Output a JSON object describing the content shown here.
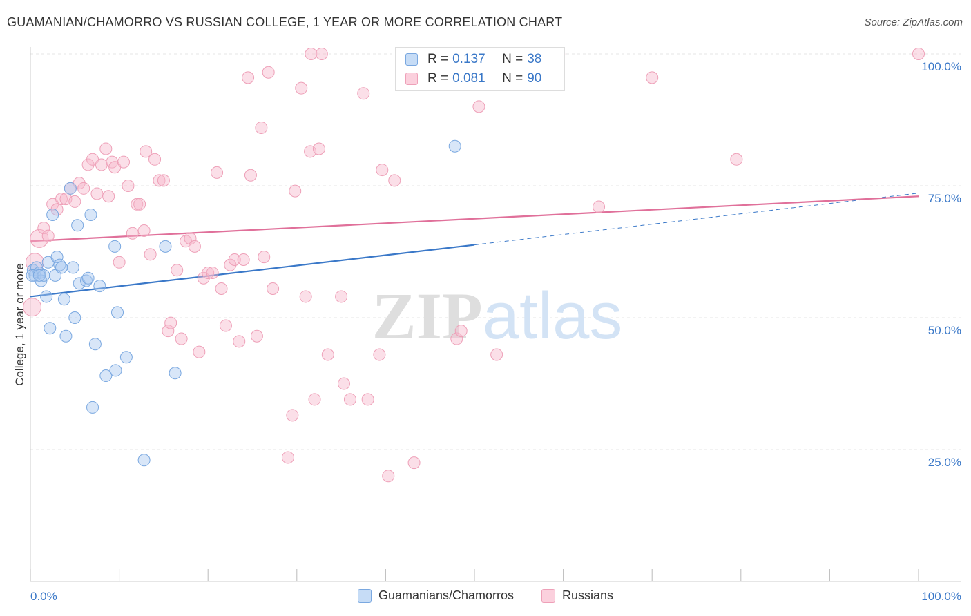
{
  "title": "GUAMANIAN/CHAMORRO VS RUSSIAN COLLEGE, 1 YEAR OR MORE CORRELATION CHART",
  "source": "Source: ZipAtlas.com",
  "watermark": "ZIPatlas",
  "legend": {
    "rows": [
      {
        "r_label": "R =",
        "r_value": "0.137",
        "n_label": "N =",
        "n_value": "38",
        "color": "#a8c8f0"
      },
      {
        "r_label": "R =",
        "r_value": "0.081",
        "n_label": "N =",
        "n_value": "90",
        "color": "#f7b8cc"
      }
    ]
  },
  "bottom_legend": [
    {
      "label": "Guamanians/Chamorros",
      "color": "#a8c8f0"
    },
    {
      "label": "Russians",
      "color": "#f7b8cc"
    }
  ],
  "colors": {
    "blue": "#3a78c8",
    "pink": "#e0709a",
    "blue_fill": "#a8c8f0",
    "pink_fill": "#f7b8cc",
    "axis_text": "#3a78c8"
  },
  "chart_data": {
    "type": "scatter",
    "title": "GUAMANIAN/CHAMORRO VS RUSSIAN COLLEGE, 1 YEAR OR MORE CORRELATION CHART",
    "xlabel": "",
    "ylabel": "College, 1 year or more",
    "x_ticks": [
      "0.0%",
      "100.0%"
    ],
    "y_ticks": [
      "25.0%",
      "50.0%",
      "75.0%",
      "100.0%"
    ],
    "xlim": [
      0,
      100
    ],
    "ylim": [
      0,
      100
    ],
    "grid": true,
    "series": [
      {
        "name": "Guamanians/Chamorros",
        "color": "#3a78c8",
        "trend": {
          "x0": 0,
          "y0": 54.0,
          "x1": 50,
          "y1": 63.8,
          "dash_to": 100
        },
        "points": [
          [
            0.3,
            59
          ],
          [
            0.5,
            58
          ],
          [
            0.7,
            59.5
          ],
          [
            1.0,
            58.5
          ],
          [
            1.2,
            57
          ],
          [
            1.5,
            58
          ],
          [
            1.8,
            54
          ],
          [
            2.0,
            60.5
          ],
          [
            2.2,
            48
          ],
          [
            2.5,
            69.5
          ],
          [
            2.8,
            58
          ],
          [
            3.0,
            61.5
          ],
          [
            3.3,
            60
          ],
          [
            3.5,
            59.5
          ],
          [
            3.8,
            53.5
          ],
          [
            4.0,
            46.5
          ],
          [
            4.5,
            74.5
          ],
          [
            4.8,
            59.5
          ],
          [
            5.0,
            50
          ],
          [
            5.3,
            67.5
          ],
          [
            5.5,
            56.5
          ],
          [
            6.3,
            57
          ],
          [
            6.5,
            57.5
          ],
          [
            6.8,
            69.5
          ],
          [
            7.0,
            33
          ],
          [
            7.3,
            45
          ],
          [
            7.8,
            56
          ],
          [
            8.5,
            39
          ],
          [
            9.5,
            63.5
          ],
          [
            9.6,
            40
          ],
          [
            9.8,
            51
          ],
          [
            10.8,
            42.5
          ],
          [
            12.8,
            23
          ],
          [
            15.2,
            63.5
          ],
          [
            16.3,
            39.5
          ],
          [
            47.8,
            82.5
          ],
          [
            0.2,
            58
          ],
          [
            1.0,
            58
          ]
        ]
      },
      {
        "name": "Russians",
        "color": "#e0709a",
        "trend": {
          "x0": 0,
          "y0": 64.5,
          "x1": 100,
          "y1": 73.0
        },
        "points": [
          [
            0.2,
            52
          ],
          [
            0.5,
            60.5
          ],
          [
            1.0,
            65
          ],
          [
            1.5,
            67
          ],
          [
            2.0,
            65.5
          ],
          [
            2.5,
            71.5
          ],
          [
            3.0,
            70.5
          ],
          [
            3.5,
            72.5
          ],
          [
            4.0,
            72.5
          ],
          [
            4.5,
            74.5
          ],
          [
            5.0,
            72
          ],
          [
            5.5,
            75.5
          ],
          [
            6.0,
            74.5
          ],
          [
            6.5,
            79
          ],
          [
            7.0,
            80
          ],
          [
            7.5,
            73.5
          ],
          [
            8.0,
            79
          ],
          [
            8.5,
            82
          ],
          [
            8.8,
            73
          ],
          [
            9.2,
            79.5
          ],
          [
            9.5,
            78.5
          ],
          [
            10.0,
            60.5
          ],
          [
            10.5,
            79.5
          ],
          [
            11.0,
            75
          ],
          [
            11.5,
            66
          ],
          [
            12.0,
            71.5
          ],
          [
            12.3,
            71.5
          ],
          [
            12.8,
            66.5
          ],
          [
            13.0,
            81.5
          ],
          [
            13.5,
            62
          ],
          [
            14.0,
            80
          ],
          [
            14.5,
            76
          ],
          [
            15.0,
            76
          ],
          [
            15.5,
            47.5
          ],
          [
            15.8,
            49
          ],
          [
            16.5,
            59
          ],
          [
            17.0,
            46
          ],
          [
            17.5,
            64.5
          ],
          [
            18.0,
            65
          ],
          [
            18.5,
            63.5
          ],
          [
            19.0,
            43.5
          ],
          [
            19.5,
            57.5
          ],
          [
            20.0,
            58.5
          ],
          [
            20.5,
            58.5
          ],
          [
            21.0,
            77.5
          ],
          [
            21.5,
            55.5
          ],
          [
            22.0,
            48.5
          ],
          [
            22.5,
            60
          ],
          [
            23.0,
            61
          ],
          [
            23.5,
            45.5
          ],
          [
            24.0,
            61
          ],
          [
            24.5,
            95.5
          ],
          [
            24.8,
            77
          ],
          [
            25.5,
            46.5
          ],
          [
            26.0,
            86
          ],
          [
            26.3,
            61.5
          ],
          [
            26.8,
            96.5
          ],
          [
            27.3,
            55.5
          ],
          [
            29.0,
            23.5
          ],
          [
            29.5,
            31.5
          ],
          [
            29.8,
            74
          ],
          [
            30.5,
            93.5
          ],
          [
            31.0,
            54
          ],
          [
            31.5,
            81.5
          ],
          [
            31.6,
            100
          ],
          [
            32.0,
            34.5
          ],
          [
            32.5,
            82
          ],
          [
            32.8,
            100
          ],
          [
            33.5,
            43
          ],
          [
            35.0,
            54
          ],
          [
            35.3,
            37.5
          ],
          [
            36.0,
            34.5
          ],
          [
            37.5,
            92.5
          ],
          [
            38.0,
            34.5
          ],
          [
            39.3,
            43
          ],
          [
            39.6,
            78
          ],
          [
            40.3,
            20
          ],
          [
            41.0,
            76
          ],
          [
            43.2,
            22.5
          ],
          [
            46.8,
            100
          ],
          [
            48.0,
            46
          ],
          [
            48.5,
            47.5
          ],
          [
            50.5,
            90
          ],
          [
            52.5,
            43
          ],
          [
            59.5,
            100
          ],
          [
            64.0,
            71
          ],
          [
            70.0,
            95.5
          ],
          [
            79.5,
            80
          ],
          [
            100,
            100
          ],
          [
            57.5,
            100
          ]
        ]
      }
    ]
  }
}
